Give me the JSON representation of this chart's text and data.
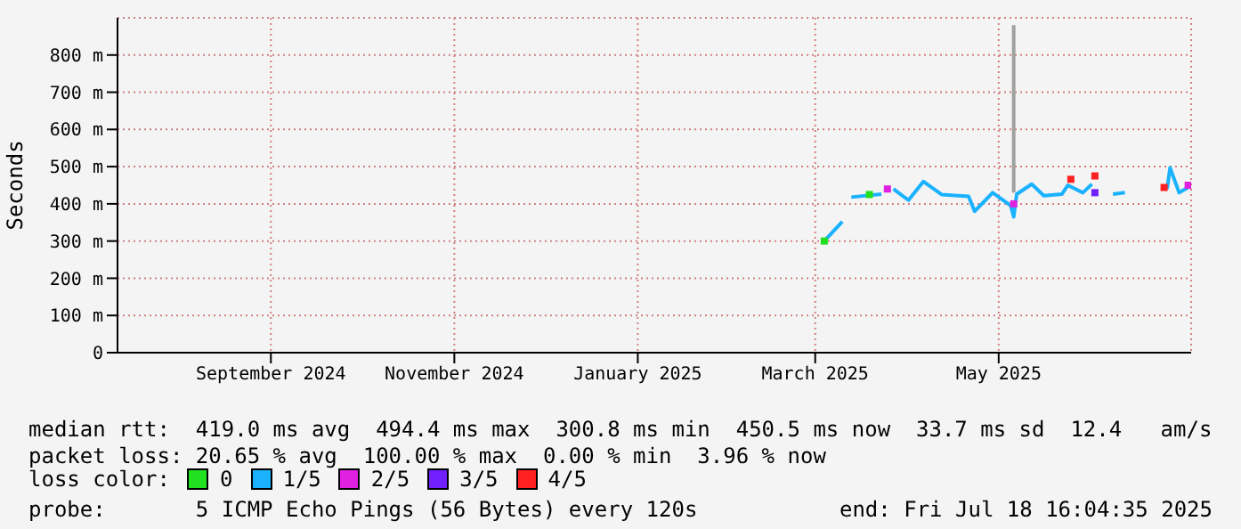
{
  "chart_data": {
    "type": "line",
    "ylabel": "Seconds",
    "xlim": [
      "2024-07-26",
      "2025-07-18"
    ],
    "xticks": [
      {
        "value": "2024-09-15",
        "label": "September 2024"
      },
      {
        "value": "2024-11-15",
        "label": "November 2024"
      },
      {
        "value": "2025-01-15",
        "label": "January 2025"
      },
      {
        "value": "2025-03-15",
        "label": "March 2025"
      },
      {
        "value": "2025-05-15",
        "label": "May 2025"
      }
    ],
    "ylim": [
      0,
      900
    ],
    "yticks": [
      0,
      {
        "value": 100,
        "label": "100 m"
      },
      {
        "value": 200,
        "label": "200 m"
      },
      {
        "value": 300,
        "label": "300 m"
      },
      {
        "value": 400,
        "label": "400 m"
      },
      {
        "value": 500,
        "label": "500 m"
      },
      {
        "value": 600,
        "label": "600 m"
      },
      {
        "value": 700,
        "label": "700 m"
      },
      {
        "value": 800,
        "label": "800 m"
      }
    ],
    "grid": true,
    "legend": "bottom",
    "legend_title": "loss color:",
    "series": [
      {
        "name": "0",
        "type": "scatter",
        "marker": "square",
        "color": "#20e020",
        "x": [
          "2025-03-18",
          "2025-04-02"
        ],
        "values": [
          300,
          425
        ]
      },
      {
        "name": "1/5",
        "color": "#1ab2ff",
        "x": [
          "2025-03-18",
          "2025-03-24",
          "2025-03-25",
          "2025-03-27",
          "2025-04-06",
          "2025-04-08",
          "2025-04-10",
          "2025-04-15",
          "2025-04-20",
          "2025-04-26",
          "2025-05-05",
          "2025-05-07",
          "2025-05-13",
          "2025-05-19",
          "2025-05-20",
          "2025-05-21",
          "2025-05-26",
          "2025-05-30",
          "2025-06-05",
          "2025-06-07",
          "2025-06-12",
          "2025-06-15",
          "2025-06-18",
          "2025-06-22",
          "2025-06-26",
          "2025-07-01",
          "2025-07-10",
          "2025-07-11",
          "2025-07-14",
          "2025-07-17"
        ],
        "values": [
          300,
          352,
          null,
          418,
          426,
          null,
          440,
          410,
          460,
          425,
          420,
          380,
          430,
          395,
          365,
          426,
          453,
          422,
          426,
          450,
          430,
          453,
          null,
          426,
          430,
          null,
          440,
          497,
          430,
          444
        ]
      },
      {
        "name": "2/5",
        "type": "scatter",
        "marker": "square",
        "color": "#e020e0",
        "x": [
          "2025-04-08",
          "2025-05-20",
          "2025-07-17"
        ],
        "values": [
          440,
          400,
          450
        ]
      },
      {
        "name": "3/5",
        "type": "scatter",
        "marker": "square",
        "color": "#7020ff",
        "x": [
          "2025-06-16"
        ],
        "values": [
          430
        ]
      },
      {
        "name": "4/5",
        "type": "scatter",
        "marker": "square",
        "color": "#ff2020",
        "x": [
          "2025-06-08",
          "2025-06-16",
          "2025-07-09"
        ],
        "values": [
          466,
          475,
          444
        ]
      },
      {
        "color": "#a0a0a0",
        "x": [
          "2025-05-20",
          "2025-05-20"
        ],
        "values": [
          430,
          880
        ]
      }
    ],
    "annotations": [
      "median rtt:  419.0 ms avg  494.4 ms max  300.8 ms min  450.5 ms now  33.7 ms sd  12.4   am/s",
      "packet loss: 20.65 % avg  100.00 % max  0.00 % min  3.96 % now",
      "probe:       5 ICMP Echo Pings (56 Bytes) every 120s",
      "end: Fri Jul 18 16:04:35 2025"
    ]
  }
}
